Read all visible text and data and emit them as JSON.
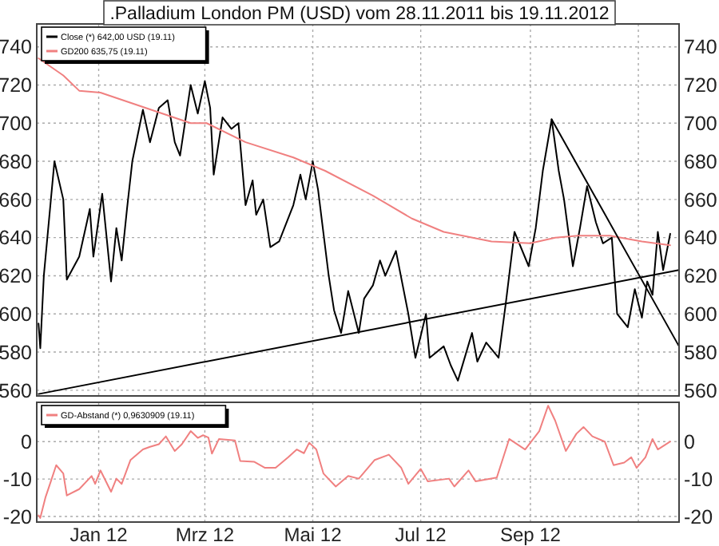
{
  "chart_data": [
    {
      "type": "line",
      "title": ".Palladium London PM (USD) vom 28.11.2011 bis 19.11.2012",
      "xlim": [
        "2011-11-27",
        "2012-11-24"
      ],
      "xticks": [
        {
          "value": "2012-01-01",
          "label": null
        },
        {
          "value": "2012-03-01",
          "label": null
        },
        {
          "value": "2012-05-01",
          "label": null
        },
        {
          "value": "2012-07-01",
          "label": null
        },
        {
          "value": "2012-09-01",
          "label": null
        },
        {
          "value": "2012-11-01",
          "label": null
        }
      ],
      "ylim": [
        557,
        752
      ],
      "yticks": [
        560,
        580,
        600,
        620,
        640,
        660,
        680,
        700,
        720,
        740
      ],
      "y2lim": [
        557,
        752
      ],
      "y2ticks": [
        560,
        580,
        600,
        620,
        640,
        660,
        680,
        700,
        720,
        740
      ],
      "tick_labels": "y",
      "grid": true,
      "legend": "top left",
      "series": [
        {
          "name": "Close (*) 642,00 USD (19.11)",
          "color": "#000000",
          "x": [
            "2011-11-28",
            "2011-11-29",
            "2011-12-01",
            "2011-12-07",
            "2011-12-12",
            "2011-12-14",
            "2011-12-21",
            "2011-12-27",
            "2011-12-29",
            "2012-01-03",
            "2012-01-08",
            "2012-01-11",
            "2012-01-14",
            "2012-01-17",
            "2012-01-20",
            "2012-01-26",
            "2012-01-30",
            "2012-02-04",
            "2012-02-09",
            "2012-02-13",
            "2012-02-16",
            "2012-02-22",
            "2012-02-26",
            "2012-03-01",
            "2012-03-04",
            "2012-03-06",
            "2012-03-11",
            "2012-03-16",
            "2012-03-20",
            "2012-03-24",
            "2012-03-28",
            "2012-03-30",
            "2012-04-03",
            "2012-04-07",
            "2012-04-12",
            "2012-04-20",
            "2012-04-24",
            "2012-04-27",
            "2012-05-01",
            "2012-05-04",
            "2012-05-10",
            "2012-05-13",
            "2012-05-17",
            "2012-05-21",
            "2012-05-27",
            "2012-05-30",
            "2012-06-04",
            "2012-06-08",
            "2012-06-11",
            "2012-06-17",
            "2012-06-24",
            "2012-06-28",
            "2012-07-04",
            "2012-07-06",
            "2012-07-14",
            "2012-07-18",
            "2012-07-22",
            "2012-07-30",
            "2012-08-02",
            "2012-08-07",
            "2012-08-14",
            "2012-08-18",
            "2012-08-23",
            "2012-08-31",
            "2012-09-04",
            "2012-09-08",
            "2012-09-13",
            "2012-09-17",
            "2012-09-20",
            "2012-09-25",
            "2012-09-29",
            "2012-10-03",
            "2012-10-08",
            "2012-10-12",
            "2012-10-17",
            "2012-10-20",
            "2012-10-26",
            "2012-10-30",
            "2012-11-03",
            "2012-11-06",
            "2012-11-09",
            "2012-11-12",
            "2012-11-15",
            "2012-11-19"
          ],
          "values": [
            595,
            582,
            620,
            680,
            660,
            618,
            630,
            655,
            630,
            663,
            617,
            645,
            628,
            655,
            680,
            707,
            690,
            708,
            712,
            690,
            683,
            720,
            705,
            722,
            708,
            673,
            703,
            697,
            700,
            657,
            670,
            652,
            660,
            635,
            638,
            657,
            673,
            660,
            680,
            665,
            620,
            602,
            590,
            612,
            590,
            608,
            615,
            628,
            620,
            633,
            600,
            577,
            600,
            577,
            583,
            573,
            565,
            590,
            575,
            585,
            577,
            605,
            643,
            625,
            645,
            675,
            702,
            675,
            660,
            625,
            645,
            667,
            648,
            637,
            640,
            600,
            593,
            613,
            598,
            617,
            610,
            643,
            623,
            642
          ]
        },
        {
          "name": "GD200 635,75 (19.11)",
          "color": "#f08080",
          "x": [
            "2011-11-28",
            "2011-12-12",
            "2011-12-21",
            "2012-01-02",
            "2012-02-22",
            "2012-03-02",
            "2012-03-24",
            "2012-04-20",
            "2012-05-08",
            "2012-06-04",
            "2012-06-26",
            "2012-07-14",
            "2012-08-10",
            "2012-09-01",
            "2012-09-15",
            "2012-09-28",
            "2012-10-16",
            "2012-11-03",
            "2012-11-19"
          ],
          "values": [
            734,
            725,
            717,
            716,
            700,
            700,
            690,
            682,
            675,
            662,
            650,
            643,
            638,
            637,
            640,
            641,
            641,
            638,
            636
          ]
        },
        {
          "color": "#000000",
          "x": [
            "2011-11-28",
            "2012-11-24"
          ],
          "values": [
            558,
            623
          ]
        },
        {
          "color": "#000000",
          "x": [
            "2012-09-13",
            "2012-11-24"
          ],
          "values": [
            702,
            583
          ]
        }
      ]
    },
    {
      "type": "line",
      "xlim": [
        "2011-11-27",
        "2012-11-24"
      ],
      "xticks": [
        {
          "value": "2012-01-01",
          "label": "Jan 12"
        },
        {
          "value": "2012-03-01",
          "label": "Mrz 12"
        },
        {
          "value": "2012-05-01",
          "label": "Mai 12"
        },
        {
          "value": "2012-07-01",
          "label": "Jul 12"
        },
        {
          "value": "2012-09-01",
          "label": "Sep 12"
        },
        {
          "value": "2012-11-01",
          "label": null
        }
      ],
      "ylim": [
        -21.5,
        10.5
      ],
      "yticks": [
        -20,
        -10,
        0
      ],
      "y2lim": [
        -21.5,
        10.5
      ],
      "y2ticks": [
        -20,
        -10,
        0
      ],
      "grid": true,
      "legend": "top left",
      "series": [
        {
          "name": "GD-Abstand (*) 0,9630909 (19.11)",
          "color": "#f08080",
          "x": [
            "2011-11-28",
            "2011-11-29",
            "2011-12-02",
            "2011-12-05",
            "2011-12-08",
            "2011-12-12",
            "2011-12-14",
            "2011-12-21",
            "2011-12-28",
            "2011-12-30",
            "2012-01-02",
            "2012-01-08",
            "2012-01-11",
            "2012-01-14",
            "2012-01-19",
            "2012-01-26",
            "2012-01-30",
            "2012-02-04",
            "2012-02-08",
            "2012-02-13",
            "2012-02-17",
            "2012-02-22",
            "2012-02-26",
            "2012-02-29",
            "2012-03-03",
            "2012-03-05",
            "2012-03-09",
            "2012-03-18",
            "2012-03-21",
            "2012-03-29",
            "2012-04-04",
            "2012-04-10",
            "2012-04-17",
            "2012-04-22",
            "2012-04-26",
            "2012-04-29",
            "2012-05-03",
            "2012-05-07",
            "2012-05-14",
            "2012-05-21",
            "2012-05-27",
            "2012-06-05",
            "2012-06-13",
            "2012-06-20",
            "2012-06-24",
            "2012-07-01",
            "2012-07-05",
            "2012-07-17",
            "2012-07-20",
            "2012-07-28",
            "2012-08-01",
            "2012-08-13",
            "2012-08-20",
            "2012-08-29",
            "2012-09-06",
            "2012-09-11",
            "2012-09-15",
            "2012-09-21",
            "2012-09-27",
            "2012-10-01",
            "2012-10-06",
            "2012-10-13",
            "2012-10-18",
            "2012-10-24",
            "2012-10-28",
            "2012-10-31",
            "2012-11-05",
            "2012-11-09",
            "2012-11-12",
            "2012-11-19"
          ],
          "values": [
            -19.7,
            -20.4,
            -14.8,
            -10.6,
            -6.3,
            -8.5,
            -14.4,
            -12.7,
            -9.2,
            -11.3,
            -7.7,
            -13.4,
            -9.9,
            -11.3,
            -4.9,
            -2.1,
            -1.4,
            -0.7,
            1.4,
            -2.5,
            -0.7,
            2.8,
            1.0,
            1.7,
            1.1,
            -3.2,
            0.7,
            0.3,
            -5.2,
            -5.4,
            -7.0,
            -7.0,
            -4.2,
            -2.1,
            -3.1,
            -0.3,
            -2.1,
            -8.5,
            -12.0,
            -9.2,
            -9.9,
            -4.9,
            -3.5,
            -7.0,
            -11.3,
            -7.3,
            -10.6,
            -9.9,
            -12.0,
            -7.7,
            -10.6,
            -9.6,
            0.7,
            -2.1,
            2.8,
            9.6,
            5.6,
            -2.5,
            2.1,
            3.9,
            1.4,
            0,
            -6.3,
            -5.6,
            -4.2,
            -7.0,
            -4.2,
            0.7,
            -2.1,
            0
          ]
        }
      ]
    }
  ]
}
